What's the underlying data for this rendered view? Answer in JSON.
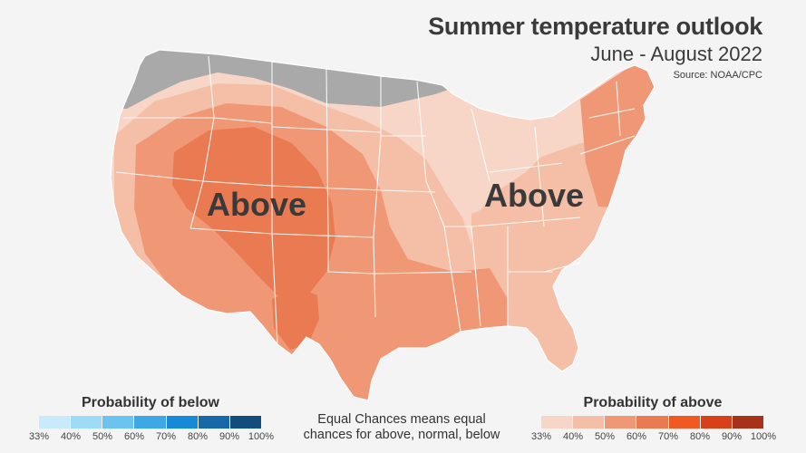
{
  "header": {
    "title": "Summer temperature outlook",
    "subtitle": "June - August 2022",
    "source": "Source: NOAA/CPC"
  },
  "map": {
    "labels": [
      "Above",
      "Above"
    ],
    "colors": {
      "no_data": "#a9a9a9",
      "above_33": "#f7d6c8",
      "above_40": "#f5bea6",
      "above_50": "#f09876",
      "above_60": "#ea7a52",
      "border": "#ffffff"
    }
  },
  "legend_below": {
    "title": "Probability of below",
    "colors": [
      "#c8eafc",
      "#9fdaf7",
      "#6bc3ef",
      "#3ea8e6",
      "#168ad6",
      "#1668a8",
      "#124d7d"
    ],
    "ticks": [
      "33%",
      "40%",
      "50%",
      "60%",
      "70%",
      "80%",
      "90%",
      "100%"
    ]
  },
  "legend_above": {
    "title": "Probability of above",
    "colors": [
      "#f7d6c8",
      "#f5bea6",
      "#f09876",
      "#ea7a52",
      "#f05a22",
      "#d8401a",
      "#a8311a"
    ],
    "ticks": [
      "33%",
      "40%",
      "50%",
      "60%",
      "70%",
      "80%",
      "90%",
      "100%"
    ]
  },
  "note": {
    "line1": "Equal Chances means equal",
    "line2": "chances for above, normal, below"
  }
}
